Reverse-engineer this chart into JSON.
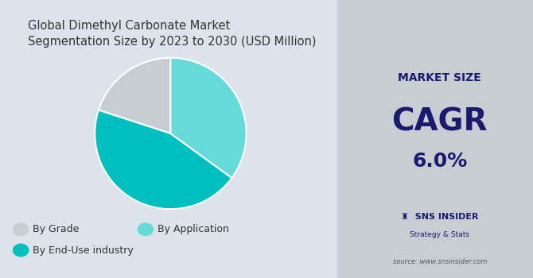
{
  "title": "Global Dimethyl Carbonate Market\nSegmentation Size by 2023 to 2030 (USD Million)",
  "title_fontsize": 10.5,
  "title_color": "#333333",
  "pie_values": [
    20,
    45,
    35
  ],
  "pie_colors": [
    "#c8cdd4",
    "#00bfbf",
    "#66d9d9"
  ],
  "pie_labels": [
    "By Grade",
    "By End-Use industry",
    "By Application"
  ],
  "legend_items": [
    {
      "label": "By Grade",
      "color": "#c8cdd4"
    },
    {
      "label": "By Application",
      "color": "#66d9d9"
    },
    {
      "label": "By End-Use industry",
      "color": "#00bfbf"
    }
  ],
  "left_bg": "#dde3ea",
  "right_bg": "#c8cdd4",
  "cagr_label": "MARKET SIZE",
  "cagr_title": "CAGR",
  "cagr_value": "6.0%",
  "cagr_color": "#1a1a6e",
  "source_text": "source: www.snsinsider.com",
  "sns_text": "SNS INSIDER",
  "sns_sub": "Strategy & Stats",
  "startangle": 90,
  "explode": [
    0.0,
    0.0,
    0.0
  ]
}
